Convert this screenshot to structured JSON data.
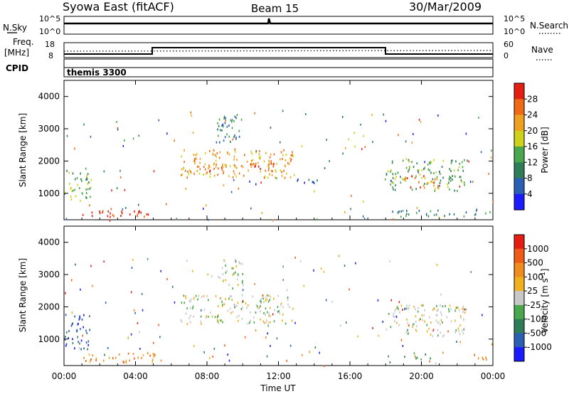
{
  "header": {
    "title": "Syowa East (fitACF)",
    "beam": "Beam 15",
    "date": "30/Mar/2009"
  },
  "params": {
    "nsky_label": "N.Sky",
    "nsearch_label": "N.Search",
    "freq_label_1": "Freq.",
    "freq_label_2": "[MHz]",
    "nave_label": "Nave",
    "cpid_label": "CPID",
    "cpid_value": "themis 3300",
    "nsky_ticks_left": [
      "10^5",
      "10^0"
    ],
    "nsky_ticks_right": [
      "10^5",
      "10^0"
    ],
    "freq_ticks_left": [
      "18",
      "8"
    ],
    "nave_ticks_right": [
      "60",
      "0"
    ]
  },
  "colors": {
    "power": [
      "#1b1bff",
      "#2a5fb4",
      "#2f7d58",
      "#4aa84c",
      "#cfd21a",
      "#f0a020",
      "#f06a16",
      "#e51e14"
    ],
    "velocity": [
      "#e51e14",
      "#f05a16",
      "#f08c20",
      "#f0b020",
      "#c8c8c8",
      "#4aa84c",
      "#2f7d58",
      "#2a5fb4",
      "#1b1bff"
    ]
  },
  "chart_data": [
    {
      "type": "line",
      "title": "N.Sky / N.Search",
      "x_range_hours": [
        0,
        24
      ],
      "description_series": [
        {
          "name": "N.Sky",
          "values_hours": [
            0,
            11.5,
            11.6,
            24
          ],
          "values": [
            1000,
            1000,
            100000,
            1000
          ]
        }
      ]
    },
    {
      "type": "line",
      "x_range_hours": [
        0,
        24
      ],
      "series": [
        {
          "name": "Freq. [MHz]",
          "x": [
            0,
            5,
            5,
            18,
            18,
            24
          ],
          "values": [
            10,
            10,
            12,
            12,
            10,
            10
          ]
        },
        {
          "name": "Nave",
          "x": [
            0,
            24
          ],
          "values": [
            25,
            25
          ]
        }
      ],
      "ylim_freq": [
        8,
        18
      ],
      "ylim_nave": [
        0,
        60
      ]
    },
    {
      "type": "heatmap",
      "ylabel": "Slant Range [km]",
      "colorbar_label": "Power [dB]",
      "colorbar_ticks": [
        "28",
        "24",
        "20",
        "16",
        "12",
        "8",
        "4"
      ],
      "ylim": [
        180,
        4500
      ],
      "yticks": [
        1000,
        2000,
        3000,
        4000
      ],
      "regions": [
        {
          "t0": 0.0,
          "t1": 1.5,
          "r0": 700,
          "r1": 1800,
          "level": 3
        },
        {
          "t0": 1.0,
          "t1": 5.5,
          "r0": 300,
          "r1": 550,
          "level": 7
        },
        {
          "t0": 6.5,
          "t1": 12.8,
          "r0": 1500,
          "r1": 2400,
          "level": 5
        },
        {
          "t0": 7.0,
          "t1": 12.0,
          "r0": 1700,
          "r1": 2000,
          "level": 6
        },
        {
          "t0": 8.5,
          "t1": 10.0,
          "r0": 2600,
          "r1": 3500,
          "level": 2
        },
        {
          "t0": 13.0,
          "t1": 14.5,
          "r0": 1300,
          "r1": 1500,
          "level": 1
        },
        {
          "t0": 18.0,
          "t1": 22.5,
          "r0": 1100,
          "r1": 2100,
          "level": 3
        },
        {
          "t0": 19.0,
          "t1": 21.0,
          "r0": 1200,
          "r1": 1600,
          "level": 6
        },
        {
          "t0": 18.0,
          "t1": 24.0,
          "r0": 300,
          "r1": 500,
          "level": 2
        }
      ]
    },
    {
      "type": "heatmap",
      "xlabel": "Time UT",
      "ylabel": "Slant Range [km]",
      "colorbar_label": "Velocity [m s^-1]",
      "colorbar_ticks": [
        "1000",
        "500",
        "100",
        "25",
        "-25",
        "-100",
        "-500",
        "-1000"
      ],
      "ylim": [
        180,
        4500
      ],
      "yticks": [
        1000,
        2000,
        3000,
        4000
      ],
      "xticks": [
        "00:00",
        "04:00",
        "08:00",
        "12:00",
        "16:00",
        "20:00",
        "00:00"
      ],
      "regions": [
        {
          "t0": 0.0,
          "t1": 1.5,
          "r0": 700,
          "r1": 1800,
          "level": 7
        },
        {
          "t0": 1.0,
          "t1": 5.5,
          "r0": 300,
          "r1": 600,
          "level": 2
        },
        {
          "t0": 6.5,
          "t1": 12.8,
          "r0": 1500,
          "r1": 2400,
          "level": 4
        },
        {
          "t0": 8.5,
          "t1": 10.0,
          "r0": 2600,
          "r1": 3500,
          "level": 4
        },
        {
          "t0": 18.0,
          "t1": 22.5,
          "r0": 1100,
          "r1": 2100,
          "level": 4
        },
        {
          "t0": 19.0,
          "t1": 20.5,
          "r0": 400,
          "r1": 600,
          "level": 6
        },
        {
          "t0": 22.5,
          "t1": 24.0,
          "r0": 400,
          "r1": 550,
          "level": 2
        }
      ]
    }
  ]
}
